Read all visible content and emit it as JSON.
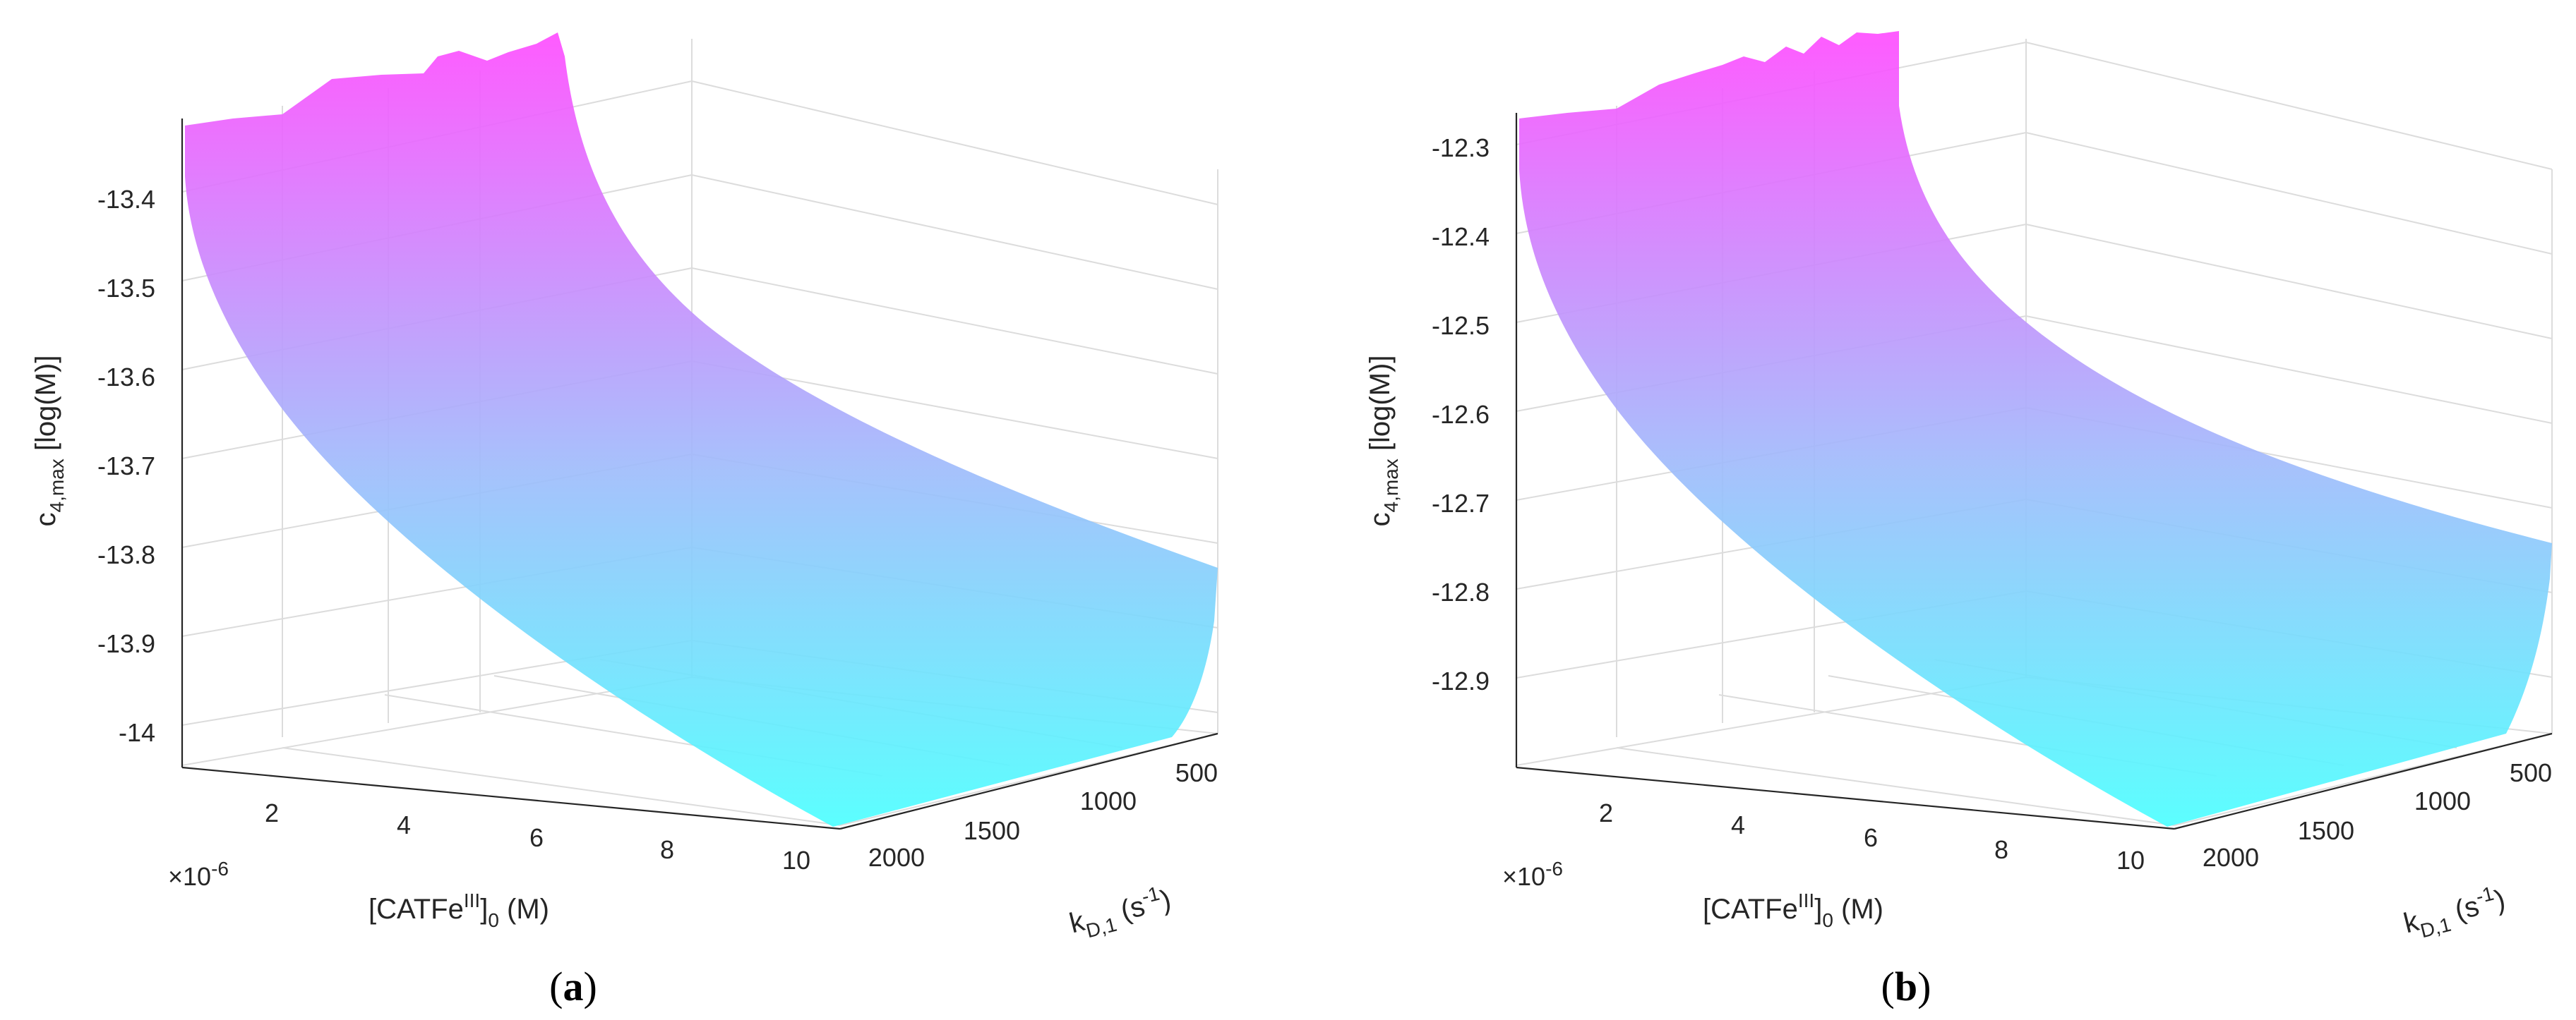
{
  "chart_data": [
    {
      "type": "surface",
      "panel_label_open": "(",
      "panel_label_letter": "a",
      "panel_label_close": ")",
      "zlabel_main": "c",
      "zlabel_sub": "4,max",
      "zlabel_unit": " [log(M)]",
      "xlabel_pre": "[CATFe",
      "xlabel_sup": "III",
      "xlabel_post": "]",
      "xlabel_sub": "0",
      "xlabel_unit": " (M)",
      "ylabel_main": "k",
      "ylabel_sub": "D,1",
      "ylabel_unit_open": " (s",
      "ylabel_sup": "-1",
      "ylabel_unit_close": ")",
      "x_exponent_base": "×10",
      "x_exponent": "-6",
      "x_ticks": [
        "2",
        "4",
        "6",
        "8",
        "10"
      ],
      "y_ticks": [
        "500",
        "1000",
        "1500",
        "2000"
      ],
      "z_ticks": [
        "-13.4",
        "-13.5",
        "-13.6",
        "-13.7",
        "-13.8",
        "-13.9",
        "-14"
      ],
      "xlim": [
        4e-07,
        1e-05
      ],
      "ylim": [
        200,
        2000
      ],
      "zlim": [
        -14.05,
        -13.3
      ],
      "colormap": [
        "#ff4dff",
        "#4dffff"
      ],
      "surface_corners": {
        "z_at_xmin_ymax": -13.33,
        "z_at_xmin_ymin": -13.28,
        "z_at_xmax_ymin": -13.81,
        "z_at_xmax_ymax": -14.05
      }
    },
    {
      "type": "surface",
      "panel_label_open": "(",
      "panel_label_letter": "b",
      "panel_label_close": ")",
      "zlabel_main": "c",
      "zlabel_sub": "4,max",
      "zlabel_unit": " [log(M)]",
      "xlabel_pre": "[CATFe",
      "xlabel_sup": "III",
      "xlabel_post": "]",
      "xlabel_sub": "0",
      "xlabel_unit": " (M)",
      "ylabel_main": "k",
      "ylabel_sub": "D,1",
      "ylabel_unit_open": " (s",
      "ylabel_sup": "-1",
      "ylabel_unit_close": ")",
      "x_exponent_base": "×10",
      "x_exponent": "-6",
      "x_ticks": [
        "2",
        "4",
        "6",
        "8",
        "10"
      ],
      "y_ticks": [
        "500",
        "1000",
        "1500",
        "2000"
      ],
      "z_ticks": [
        "-12.3",
        "-12.4",
        "-12.5",
        "-12.6",
        "-12.7",
        "-12.8",
        "-12.9"
      ],
      "xlim": [
        4e-07,
        1e-05
      ],
      "ylim": [
        200,
        2000
      ],
      "zlim": [
        -12.98,
        -12.25
      ],
      "colormap": [
        "#ff4dff",
        "#4dffff"
      ],
      "surface_corners": {
        "z_at_xmin_ymax": -12.27,
        "z_at_xmin_ymin": -12.22,
        "z_at_xmax_ymin": -12.74,
        "z_at_xmax_ymax": -12.98
      }
    }
  ]
}
